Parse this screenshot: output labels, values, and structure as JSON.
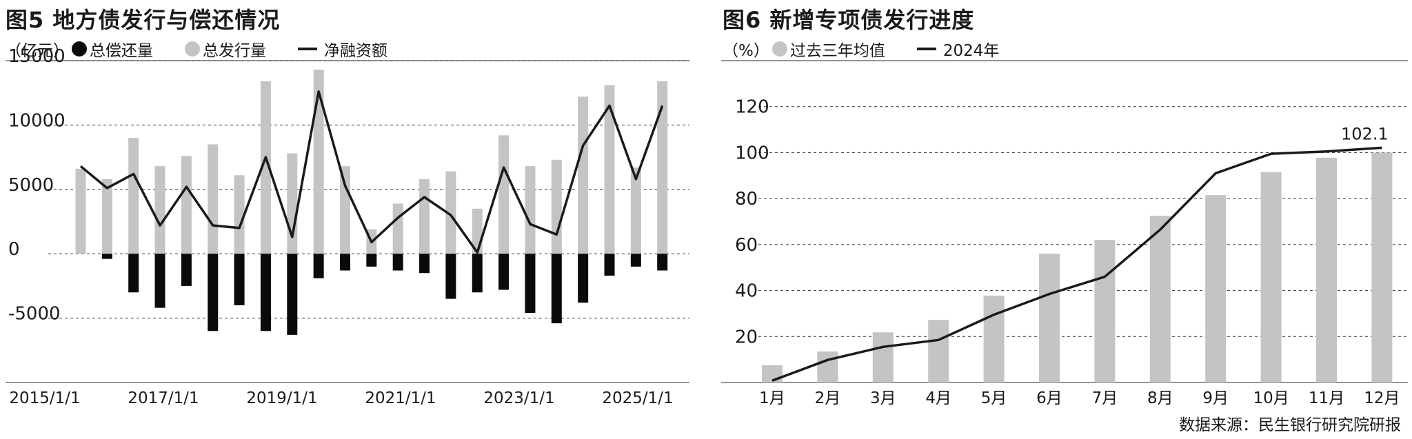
{
  "chart_data": [
    {
      "type": "bar",
      "title": "图5 地方债发行与偿还情况",
      "unit": "（亿元）",
      "legend": [
        {
          "label": "总偿还量",
          "color": "#0a0a0a",
          "marker": "dot"
        },
        {
          "label": "总发行量",
          "color": "#c4c4c4",
          "marker": "dot"
        },
        {
          "label": "净融资额",
          "color": "#1a1a1a",
          "marker": "line"
        }
      ],
      "x_tick_labels": [
        "2015/1/1",
        "2017/1/1",
        "2019/1/1",
        "2021/1/1",
        "2023/1/1",
        "2025/1/1"
      ],
      "y_tick_labels": [
        "15000",
        "10000",
        "5000",
        "0",
        "-5000"
      ],
      "ylim": [
        -10000,
        15000
      ],
      "grid": true,
      "n_points": 23,
      "series": [
        {
          "name": "总发行量",
          "type": "bar",
          "values": [
            6600,
            5800,
            9000,
            6800,
            7600,
            8500,
            6100,
            13400,
            7800,
            14300,
            6800,
            1900,
            3900,
            5800,
            6400,
            3500,
            9200,
            6800,
            7300,
            12200,
            13100,
            6700,
            13400
          ]
        },
        {
          "name": "总偿还量",
          "type": "bar",
          "values": [
            0,
            -400,
            -3000,
            -4200,
            -2500,
            -6000,
            -4000,
            -6000,
            -6300,
            -1900,
            -1300,
            -1000,
            -1300,
            -1500,
            -3500,
            -3000,
            -2800,
            -4600,
            -5400,
            -3800,
            -1700,
            -1000,
            -1300
          ]
        },
        {
          "name": "净融资额",
          "type": "line",
          "values": [
            6800,
            5100,
            6200,
            2200,
            5200,
            2200,
            2000,
            7500,
            1300,
            12600,
            5300,
            900,
            2800,
            4400,
            3000,
            100,
            6700,
            2300,
            1500,
            8400,
            11500,
            5800,
            11500
          ]
        }
      ]
    },
    {
      "type": "bar",
      "title": "图6 新增专项债发行进度",
      "unit": "（%）",
      "legend": [
        {
          "label": "过去三年均值",
          "color": "#c4c4c4",
          "marker": "dot"
        },
        {
          "label": "2024年",
          "color": "#1a1a1a",
          "marker": "line"
        }
      ],
      "categories": [
        "1月",
        "2月",
        "3月",
        "4月",
        "5月",
        "6月",
        "7月",
        "8月",
        "9月",
        "10月",
        "11月",
        "12月"
      ],
      "y_tick_labels": [
        "120",
        "100",
        "80",
        "60",
        "40",
        "20"
      ],
      "ylim": [
        0,
        120
      ],
      "grid": true,
      "series": [
        {
          "name": "过去三年均值",
          "type": "bar",
          "values": [
            7.5,
            13.5,
            21.8,
            27.2,
            37.8,
            56,
            62,
            72.5,
            81.5,
            91.5,
            97.8,
            100
          ]
        },
        {
          "name": "2024年",
          "type": "line",
          "values": [
            0.8,
            9.8,
            15.5,
            18.5,
            29.5,
            38.5,
            46,
            66.5,
            91,
            99.5,
            100.5,
            102.1
          ],
          "data_label": "102.1"
        }
      ]
    }
  ],
  "source": "数据来源：民生银行研究院研报"
}
